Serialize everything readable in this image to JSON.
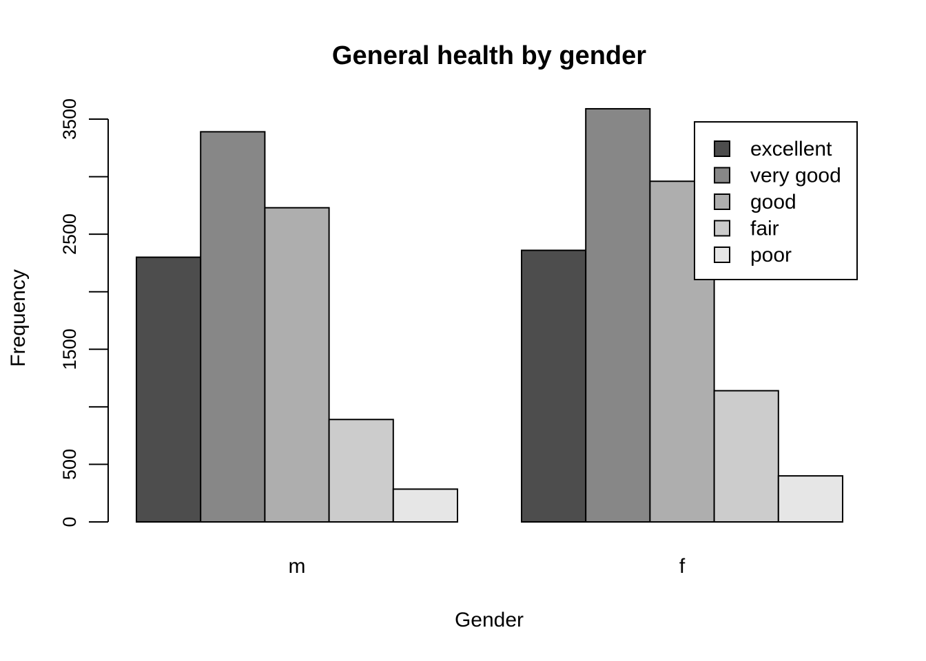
{
  "chart_data": {
    "type": "bar",
    "title": "General health by gender",
    "xlabel": "Gender",
    "ylabel": "Frequency",
    "categories": [
      "m",
      "f"
    ],
    "series": [
      {
        "name": "excellent",
        "color": "#4d4d4d",
        "values": [
          2300,
          2360
        ]
      },
      {
        "name": "very good",
        "color": "#878787",
        "values": [
          3390,
          3590
        ]
      },
      {
        "name": "good",
        "color": "#aeaeae",
        "values": [
          2730,
          2960
        ]
      },
      {
        "name": "fair",
        "color": "#cccccc",
        "values": [
          890,
          1140
        ]
      },
      {
        "name": "poor",
        "color": "#e6e6e6",
        "values": [
          285,
          400
        ]
      }
    ],
    "ylim": [
      0,
      3500
    ],
    "y_ticks": [
      0,
      500,
      1000,
      1500,
      2000,
      2500,
      3000,
      3500
    ],
    "y_tick_labels": [
      "0",
      "500",
      "",
      "1500",
      "",
      "2500",
      "",
      "3500"
    ],
    "grid": false,
    "legend_position": "top-right"
  }
}
